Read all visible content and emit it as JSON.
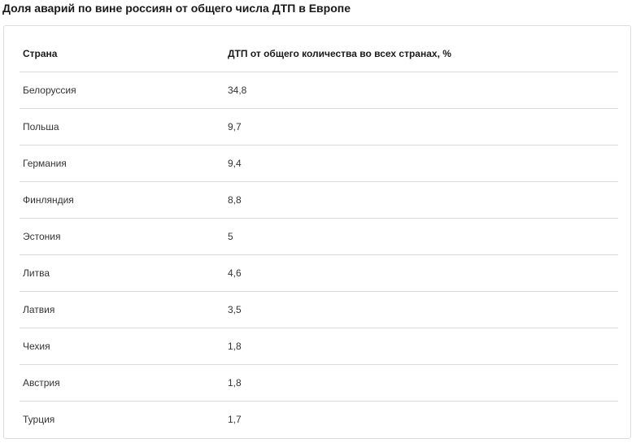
{
  "title": "Доля аварий по вине россиян от общего числа ДТП в Европе",
  "table": {
    "headers": [
      "Страна",
      "ДТП от общего количества во всех странах, %"
    ],
    "rows": [
      [
        "Белоруссия",
        "34,8"
      ],
      [
        "Польша",
        "9,7"
      ],
      [
        "Германия",
        "9,4"
      ],
      [
        "Финляндия",
        "8,8"
      ],
      [
        "Эстония",
        "5"
      ],
      [
        "Литва",
        "4,6"
      ],
      [
        "Латвия",
        "3,5"
      ],
      [
        "Чехия",
        "1,8"
      ],
      [
        "Австрия",
        "1,8"
      ],
      [
        "Турция",
        "1,7"
      ]
    ]
  }
}
